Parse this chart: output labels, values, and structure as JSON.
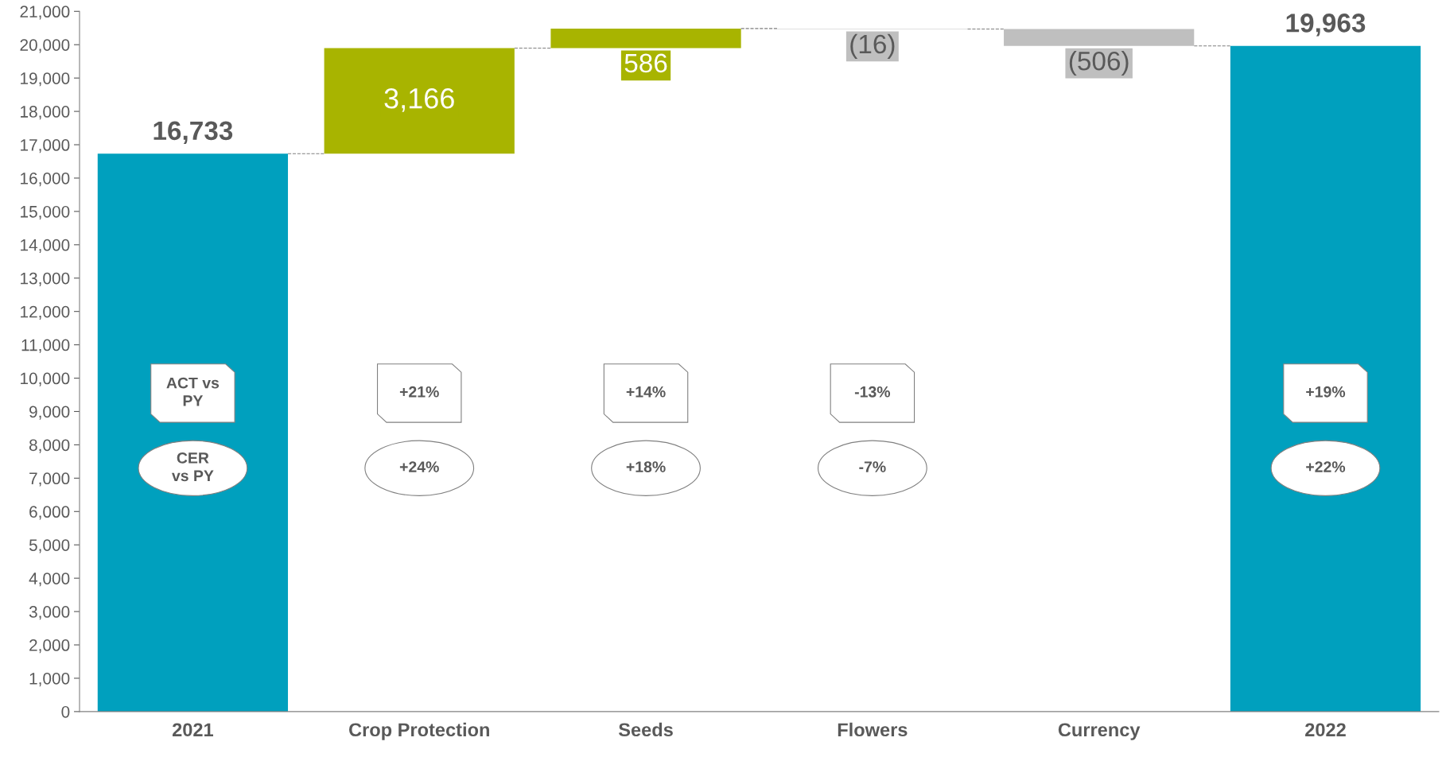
{
  "chart_data": {
    "type": "bar",
    "categories": [
      "2021",
      "Crop Protection",
      "Seeds",
      "Flowers",
      "Currency",
      "2022"
    ],
    "values": [
      16733,
      3166,
      586,
      -16,
      -506,
      19963
    ],
    "base": [
      0,
      16733,
      19899,
      20485,
      20469,
      0
    ],
    "colors": [
      "#00a0be",
      "#a8b400",
      "#a8b400",
      "#bfbfbf",
      "#bfbfbf",
      "#00a0be"
    ],
    "value_labels": [
      "16,733",
      "3,166",
      "586",
      "(16)",
      "(506)",
      "19,963"
    ],
    "ylim": [
      0,
      21000
    ],
    "yticks": [
      0,
      {
        "value": 1000,
        "label": "1,000"
      },
      {
        "value": 2000,
        "label": "2,000"
      },
      {
        "value": 3000,
        "label": "3,000"
      },
      {
        "value": 4000,
        "label": "4,000"
      },
      {
        "value": 5000,
        "label": "5,000"
      },
      {
        "value": 6000,
        "label": "6,000"
      },
      {
        "value": 7000,
        "label": "7,000"
      },
      {
        "value": 8000,
        "label": "8,000"
      },
      {
        "value": 9000,
        "label": "9,000"
      },
      {
        "value": 10000,
        "label": "10,000"
      },
      {
        "value": 11000,
        "label": "11,000"
      },
      {
        "value": 12000,
        "label": "12,000"
      },
      {
        "value": 13000,
        "label": "13,000"
      },
      {
        "value": 14000,
        "label": "14,000"
      },
      {
        "value": 15000,
        "label": "15,000"
      },
      {
        "value": 16000,
        "label": "16,000"
      },
      {
        "value": 17000,
        "label": "17,000"
      },
      {
        "value": 18000,
        "label": "18,000"
      },
      {
        "value": 19000,
        "label": "19,000"
      },
      {
        "value": 20000,
        "label": "20,000"
      },
      {
        "value": 21000,
        "label": "21,000"
      }
    ],
    "grid": false,
    "annotations": [
      "ACT vs\nPY",
      "CER\nvs PY",
      "+21%",
      "+24%",
      "+14%",
      "+18%",
      "-13%",
      "-7%",
      "+19%",
      "+22%"
    ]
  }
}
